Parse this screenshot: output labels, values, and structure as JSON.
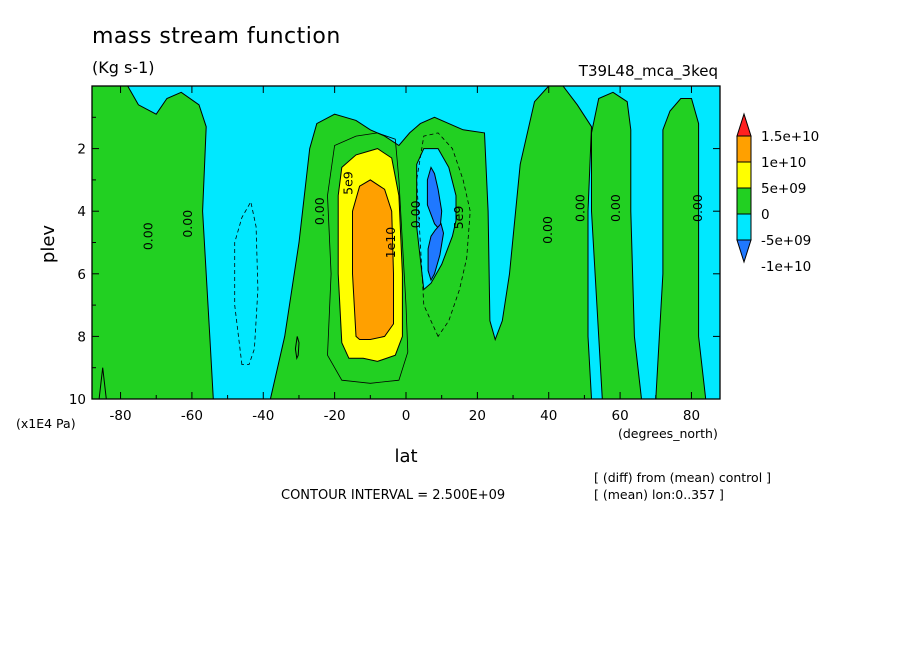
{
  "header": {
    "title": "mass stream function",
    "units": "(Kg s-1)",
    "experiment": "T39L48_mca_3keq"
  },
  "footer": {
    "contour_interval": "CONTOUR INTERVAL = 2.500E+09",
    "note_diff": "[ (diff) from (mean) control ]",
    "note_mean": "[ (mean) lon:0..357 ]"
  },
  "chart_data": {
    "type": "contour",
    "title": "mass stream function",
    "units": "(Kg s-1)",
    "xlabel": "lat",
    "xunits": "(degrees_north)",
    "ylabel": "plev",
    "yunits": "(x1E4 Pa)",
    "xlim": [
      -88,
      88
    ],
    "ylim": [
      10,
      0
    ],
    "x_ticks": [
      -80,
      -60,
      -40,
      -20,
      0,
      20,
      40,
      60,
      80
    ],
    "x_tick_labels": [
      "-80",
      "-60",
      "-40",
      "-20",
      "0",
      "20",
      "40",
      "60",
      "80"
    ],
    "y_ticks": [
      2,
      4,
      6,
      8,
      10
    ],
    "y_tick_labels": [
      "2",
      "4",
      "6",
      "8",
      "10"
    ],
    "contour_interval": 2500000000,
    "colorbar": {
      "levels": [
        -10000000000,
        -5000000000,
        0,
        5000000000,
        10000000000,
        15000000000
      ],
      "labels": [
        "-1e+10",
        "-5e+09",
        "0",
        "5e+09",
        "1e+10",
        "1.5e+10"
      ],
      "colors": [
        "#1f78ff",
        "#00e8ff",
        "#22d022",
        "#ffff00",
        "#ffa000",
        "#ff2020"
      ]
    },
    "contour_labels": [
      {
        "text": "0.00",
        "lat": -72,
        "plev": 4.8
      },
      {
        "text": "0.00",
        "lat": -61,
        "plev": 4.4
      },
      {
        "text": "0.00",
        "lat": -24,
        "plev": 4.0
      },
      {
        "text": "5e9",
        "lat": -16,
        "plev": 3.1
      },
      {
        "text": "1e10",
        "lat": -4,
        "plev": 5.0
      },
      {
        "text": "0.00",
        "lat": 3,
        "plev": 4.1
      },
      {
        "text": "5e9",
        "lat": 15,
        "plev": 4.2
      },
      {
        "text": "0.00",
        "lat": 40,
        "plev": 4.6
      },
      {
        "text": "0.00",
        "lat": 49,
        "plev": 3.9
      },
      {
        "text": "0.00",
        "lat": 59,
        "plev": 3.9
      },
      {
        "text": "0.00",
        "lat": 82,
        "plev": 3.9
      }
    ],
    "regions": [
      {
        "level_index": 2,
        "points": [
          [
            -88,
            10
          ],
          [
            -88,
            0
          ],
          [
            -78,
            0
          ],
          [
            -75,
            0.6
          ],
          [
            -70,
            0.9
          ],
          [
            -67,
            0.4
          ],
          [
            -63,
            0.2
          ],
          [
            -58,
            0.6
          ],
          [
            -56,
            1.3
          ],
          [
            -57,
            4
          ],
          [
            -55,
            8
          ],
          [
            -54,
            10
          ]
        ]
      },
      {
        "level_index": 2,
        "points": [
          [
            -38,
            10
          ],
          [
            -34,
            8
          ],
          [
            -30,
            5
          ],
          [
            -27,
            2
          ],
          [
            -25,
            1.2
          ],
          [
            -20,
            0.9
          ],
          [
            -14,
            1.1
          ],
          [
            -10,
            1.4
          ],
          [
            -6,
            1.6
          ],
          [
            -2,
            1.9
          ],
          [
            1,
            1.5
          ],
          [
            4,
            1.2
          ],
          [
            8,
            1
          ],
          [
            12,
            1.2
          ],
          [
            16,
            1.4
          ],
          [
            22,
            1.5
          ],
          [
            23,
            4
          ],
          [
            23.5,
            7.5
          ],
          [
            25,
            8.1
          ],
          [
            27,
            7.5
          ],
          [
            29,
            6
          ],
          [
            32,
            2.5
          ],
          [
            36,
            0.5
          ],
          [
            40,
            0
          ],
          [
            44,
            0
          ],
          [
            48,
            0.6
          ],
          [
            52,
            1.3
          ],
          [
            51,
            4
          ],
          [
            51,
            8
          ],
          [
            52,
            10
          ]
        ]
      },
      {
        "level_index": 2,
        "points": [
          [
            55,
            10
          ],
          [
            52,
            4
          ],
          [
            52,
            1.5
          ],
          [
            54,
            0.4
          ],
          [
            58,
            0.2
          ],
          [
            62,
            0.5
          ],
          [
            63,
            1.4
          ],
          [
            63,
            4
          ],
          [
            64,
            8
          ],
          [
            66,
            10
          ]
        ]
      },
      {
        "level_index": 2,
        "points": [
          [
            70,
            10
          ],
          [
            72,
            6
          ],
          [
            72,
            1.4
          ],
          [
            74,
            0.8
          ],
          [
            77,
            0.4
          ],
          [
            80,
            0.4
          ],
          [
            82,
            1.2
          ],
          [
            82,
            4
          ],
          [
            82,
            8
          ],
          [
            84,
            10
          ]
        ]
      },
      {
        "level_index": 2,
        "points": [
          [
            -86,
            10
          ],
          [
            -85,
            9
          ],
          [
            -84,
            10
          ]
        ]
      },
      {
        "level_index": 2,
        "points": [
          [
            -31,
            8.4
          ],
          [
            -30.5,
            8
          ],
          [
            -30,
            8.2
          ],
          [
            -30.2,
            8.6
          ],
          [
            -30.6,
            8.7
          ]
        ]
      },
      {
        "level_index": 3,
        "points": [
          [
            -18,
            8.2
          ],
          [
            -19,
            6
          ],
          [
            -19,
            3.5
          ],
          [
            -18,
            2.6
          ],
          [
            -14,
            2.2
          ],
          [
            -8,
            2
          ],
          [
            -4,
            2.3
          ],
          [
            -2,
            3.5
          ],
          [
            -1,
            6
          ],
          [
            -1,
            8
          ],
          [
            -3,
            8.6
          ],
          [
            -8,
            8.8
          ],
          [
            -12,
            8.7
          ],
          [
            -16,
            8.7
          ]
        ]
      },
      {
        "level_index": 4,
        "points": [
          [
            -14,
            8
          ],
          [
            -15,
            6
          ],
          [
            -15,
            4
          ],
          [
            -13,
            3.2
          ],
          [
            -10,
            3
          ],
          [
            -6,
            3.3
          ],
          [
            -4,
            4
          ],
          [
            -3.5,
            6
          ],
          [
            -3.5,
            7.6
          ],
          [
            -6,
            8
          ],
          [
            -10,
            8.1
          ],
          [
            -13,
            8.1
          ]
        ]
      },
      {
        "level_index": 1,
        "points": [
          [
            5,
            6.5
          ],
          [
            3,
            4.5
          ],
          [
            3,
            2.5
          ],
          [
            5,
            2
          ],
          [
            9,
            2
          ],
          [
            12,
            2.6
          ],
          [
            14,
            3.5
          ],
          [
            14,
            4.3
          ],
          [
            13,
            4.8
          ],
          [
            10,
            5.7
          ],
          [
            7,
            6.3
          ]
        ]
      },
      {
        "level_index": 0,
        "points": [
          [
            8,
            4.4
          ],
          [
            6,
            3.8
          ],
          [
            6,
            3
          ],
          [
            7,
            2.6
          ],
          [
            8,
            2.8
          ],
          [
            9,
            3.3
          ],
          [
            10,
            4
          ],
          [
            9.5,
            4.6
          ]
        ]
      },
      {
        "level_index": 0,
        "points": [
          [
            7,
            6.2
          ],
          [
            6.2,
            5.9
          ],
          [
            6.2,
            5.2
          ],
          [
            7,
            4.8
          ],
          [
            8.2,
            4.6
          ],
          [
            9.8,
            4.4
          ],
          [
            10.5,
            4.7
          ],
          [
            9.5,
            5.4
          ],
          [
            8,
            6
          ]
        ]
      }
    ],
    "lines": [
      {
        "level": -2500000000,
        "dashed": true,
        "points": [
          [
            -46,
            8.9
          ],
          [
            -48,
            7
          ],
          [
            -48,
            5
          ],
          [
            -46,
            4.2
          ],
          [
            -43.5,
            3.7
          ],
          [
            -42,
            4.5
          ],
          [
            -41.5,
            6.5
          ],
          [
            -42.5,
            8.4
          ],
          [
            -44,
            8.9
          ]
        ]
      },
      {
        "level": -2500000000,
        "dashed": true,
        "points": [
          [
            9,
            8
          ],
          [
            5,
            7
          ],
          [
            4,
            5
          ],
          [
            3,
            3
          ],
          [
            5,
            1.6
          ],
          [
            9,
            1.5
          ],
          [
            13,
            2
          ],
          [
            16,
            3
          ],
          [
            18,
            4
          ],
          [
            17,
            5.5
          ],
          [
            15,
            6.5
          ],
          [
            12,
            7.5
          ]
        ]
      },
      {
        "level": 2500000000,
        "dashed": false,
        "points": [
          [
            -22,
            8.6
          ],
          [
            -21,
            6
          ],
          [
            -22,
            3.5
          ],
          [
            -20,
            1.9
          ],
          [
            -14,
            1.6
          ],
          [
            -8,
            1.5
          ],
          [
            -3,
            1.7
          ],
          [
            -2,
            3
          ],
          [
            -1,
            5
          ],
          [
            0,
            7
          ],
          [
            0.5,
            8.5
          ],
          [
            -2,
            9.4
          ],
          [
            -10,
            9.5
          ],
          [
            -18,
            9.4
          ]
        ]
      }
    ]
  }
}
